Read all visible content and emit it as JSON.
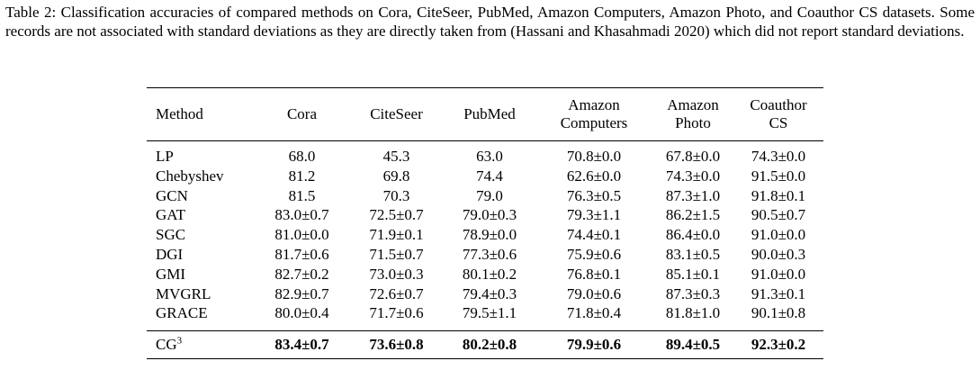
{
  "caption": "Table 2: Classification accuracies of compared methods on Cora, CiteSeer, PubMed, Amazon Computers, Amazon Photo, and Coauthor CS datasets. Some records are not associated with standard deviations as they are directly taken from (Hassani and Khasahmadi 2020) which did not report standard deviations.",
  "table": {
    "header": [
      [
        "Method"
      ],
      [
        "Cora"
      ],
      [
        "CiteSeer"
      ],
      [
        "PubMed"
      ],
      [
        "Amazon",
        "Computers"
      ],
      [
        "Amazon",
        "Photo"
      ],
      [
        "Coauthor",
        "CS"
      ]
    ],
    "rows": [
      [
        "LP",
        "68.0",
        "45.3",
        "63.0",
        "70.8±0.0",
        "67.8±0.0",
        "74.3±0.0"
      ],
      [
        "Chebyshev",
        "81.2",
        "69.8",
        "74.4",
        "62.6±0.0",
        "74.3±0.0",
        "91.5±0.0"
      ],
      [
        "GCN",
        "81.5",
        "70.3",
        "79.0",
        "76.3±0.5",
        "87.3±1.0",
        "91.8±0.1"
      ],
      [
        "GAT",
        "83.0±0.7",
        "72.5±0.7",
        "79.0±0.3",
        "79.3±1.1",
        "86.2±1.5",
        "90.5±0.7"
      ],
      [
        "SGC",
        "81.0±0.0",
        "71.9±0.1",
        "78.9±0.0",
        "74.4±0.1",
        "86.4±0.0",
        "91.0±0.0"
      ],
      [
        "DGI",
        "81.7±0.6",
        "71.5±0.7",
        "77.3±0.6",
        "75.9±0.6",
        "83.1±0.5",
        "90.0±0.3"
      ],
      [
        "GMI",
        "82.7±0.2",
        "73.0±0.3",
        "80.1±0.2",
        "76.8±0.1",
        "85.1±0.1",
        "91.0±0.0"
      ],
      [
        "MVGRL",
        "82.9±0.7",
        "72.6±0.7",
        "79.4±0.3",
        "79.0±0.6",
        "87.3±0.3",
        "91.3±0.1"
      ],
      [
        "GRACE",
        "80.0±0.4",
        "71.7±0.6",
        "79.5±1.1",
        "71.8±0.4",
        "81.8±1.0",
        "90.1±0.8"
      ]
    ],
    "ours": {
      "method": {
        "base": "CG",
        "sup": "3"
      },
      "values": [
        "83.4±0.7",
        "73.6±0.8",
        "80.2±0.8",
        "79.9±0.6",
        "89.4±0.5",
        "92.3±0.2"
      ]
    }
  }
}
